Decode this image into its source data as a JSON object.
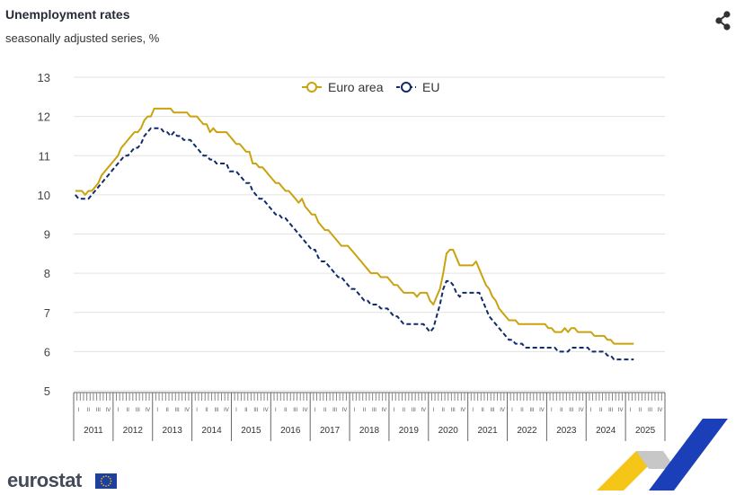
{
  "header": {
    "title": "Unemployment rates",
    "subtitle": "seasonally adjusted series, %",
    "share_icon": "share-icon"
  },
  "footer": {
    "logo_text": "eurostat",
    "flag_icon": "eu-flag-icon"
  },
  "colors": {
    "euro_area": "#c9a30f",
    "eu": "#102a6a",
    "grid": "#e3e3e3"
  },
  "chart_data": {
    "type": "line",
    "title": "Unemployment rates",
    "subtitle": "seasonally adjusted series, %",
    "ylim": [
      5,
      13
    ],
    "y_ticks": [
      5,
      6,
      7,
      8,
      9,
      10,
      11,
      12,
      13
    ],
    "quarter_labels": [
      "I",
      "II",
      "III",
      "IV"
    ],
    "year_labels": [
      "2011",
      "2012",
      "2013",
      "2014",
      "2015",
      "2016",
      "2017",
      "2018",
      "2019",
      "2020",
      "2021",
      "2022",
      "2023",
      "2024",
      "2025"
    ],
    "x_start": "2011-01",
    "x_frequency": "monthly",
    "grid": "horizontal",
    "legend_position": "top-center",
    "series": [
      {
        "name": "Euro area",
        "style": "solid",
        "values": [
          10.1,
          10.1,
          10.1,
          10.0,
          10.1,
          10.1,
          10.2,
          10.3,
          10.5,
          10.6,
          10.7,
          10.8,
          10.9,
          11.0,
          11.2,
          11.3,
          11.4,
          11.5,
          11.6,
          11.6,
          11.7,
          11.9,
          12.0,
          12.0,
          12.2,
          12.2,
          12.2,
          12.2,
          12.2,
          12.2,
          12.1,
          12.1,
          12.1,
          12.1,
          12.1,
          12.0,
          12.0,
          12.0,
          11.9,
          11.8,
          11.8,
          11.6,
          11.7,
          11.6,
          11.6,
          11.6,
          11.6,
          11.5,
          11.4,
          11.3,
          11.3,
          11.2,
          11.1,
          11.1,
          10.8,
          10.8,
          10.7,
          10.7,
          10.6,
          10.5,
          10.4,
          10.3,
          10.3,
          10.2,
          10.1,
          10.1,
          10.0,
          9.9,
          9.8,
          9.9,
          9.7,
          9.6,
          9.5,
          9.5,
          9.3,
          9.2,
          9.1,
          9.1,
          9.0,
          8.9,
          8.8,
          8.7,
          8.7,
          8.7,
          8.6,
          8.5,
          8.4,
          8.3,
          8.2,
          8.1,
          8.0,
          8.0,
          8.0,
          7.9,
          7.9,
          7.9,
          7.8,
          7.7,
          7.7,
          7.6,
          7.5,
          7.5,
          7.5,
          7.5,
          7.4,
          7.5,
          7.5,
          7.5,
          7.3,
          7.2,
          7.4,
          7.6,
          8.0,
          8.5,
          8.6,
          8.6,
          8.4,
          8.2,
          8.2,
          8.2,
          8.2,
          8.2,
          8.3,
          8.1,
          7.9,
          7.7,
          7.6,
          7.4,
          7.3,
          7.1,
          7.0,
          6.9,
          6.8,
          6.8,
          6.8,
          6.7,
          6.7,
          6.7,
          6.7,
          6.7,
          6.7,
          6.7,
          6.7,
          6.7,
          6.6,
          6.6,
          6.5,
          6.5,
          6.5,
          6.6,
          6.5,
          6.6,
          6.6,
          6.5,
          6.5,
          6.5,
          6.5,
          6.5,
          6.4,
          6.4,
          6.4,
          6.4,
          6.3,
          6.3,
          6.2,
          6.2,
          6.2,
          6.2,
          6.2,
          6.2,
          6.2
        ]
      },
      {
        "name": "EU",
        "style": "dashed",
        "values": [
          10.0,
          9.9,
          9.9,
          9.9,
          9.9,
          10.0,
          10.1,
          10.2,
          10.3,
          10.4,
          10.5,
          10.6,
          10.7,
          10.8,
          10.9,
          11.0,
          11.0,
          11.1,
          11.2,
          11.2,
          11.3,
          11.5,
          11.6,
          11.7,
          11.7,
          11.7,
          11.7,
          11.6,
          11.6,
          11.5,
          11.6,
          11.5,
          11.5,
          11.4,
          11.4,
          11.4,
          11.3,
          11.2,
          11.1,
          11.0,
          11.0,
          10.9,
          10.9,
          10.8,
          10.8,
          10.8,
          10.8,
          10.6,
          10.6,
          10.6,
          10.5,
          10.4,
          10.3,
          10.3,
          10.1,
          10.0,
          9.9,
          9.9,
          9.8,
          9.7,
          9.6,
          9.5,
          9.5,
          9.4,
          9.4,
          9.3,
          9.2,
          9.1,
          9.0,
          8.9,
          8.8,
          8.7,
          8.6,
          8.6,
          8.4,
          8.3,
          8.3,
          8.2,
          8.1,
          8.0,
          7.9,
          7.9,
          7.8,
          7.7,
          7.6,
          7.6,
          7.5,
          7.4,
          7.3,
          7.3,
          7.2,
          7.2,
          7.2,
          7.1,
          7.1,
          7.1,
          7.0,
          6.9,
          6.9,
          6.8,
          6.7,
          6.7,
          6.7,
          6.7,
          6.7,
          6.7,
          6.7,
          6.6,
          6.5,
          6.6,
          6.9,
          7.2,
          7.6,
          7.8,
          7.8,
          7.7,
          7.5,
          7.4,
          7.5,
          7.5,
          7.5,
          7.5,
          7.5,
          7.5,
          7.3,
          7.1,
          6.9,
          6.8,
          6.7,
          6.6,
          6.5,
          6.4,
          6.3,
          6.3,
          6.2,
          6.2,
          6.2,
          6.1,
          6.1,
          6.1,
          6.1,
          6.1,
          6.1,
          6.1,
          6.1,
          6.1,
          6.1,
          6.0,
          6.0,
          6.0,
          6.0,
          6.1,
          6.1,
          6.1,
          6.1,
          6.1,
          6.1,
          6.0,
          6.0,
          6.0,
          6.0,
          6.0,
          5.9,
          5.9,
          5.8,
          5.8,
          5.8,
          5.8,
          5.8,
          5.8,
          5.8
        ]
      }
    ]
  }
}
